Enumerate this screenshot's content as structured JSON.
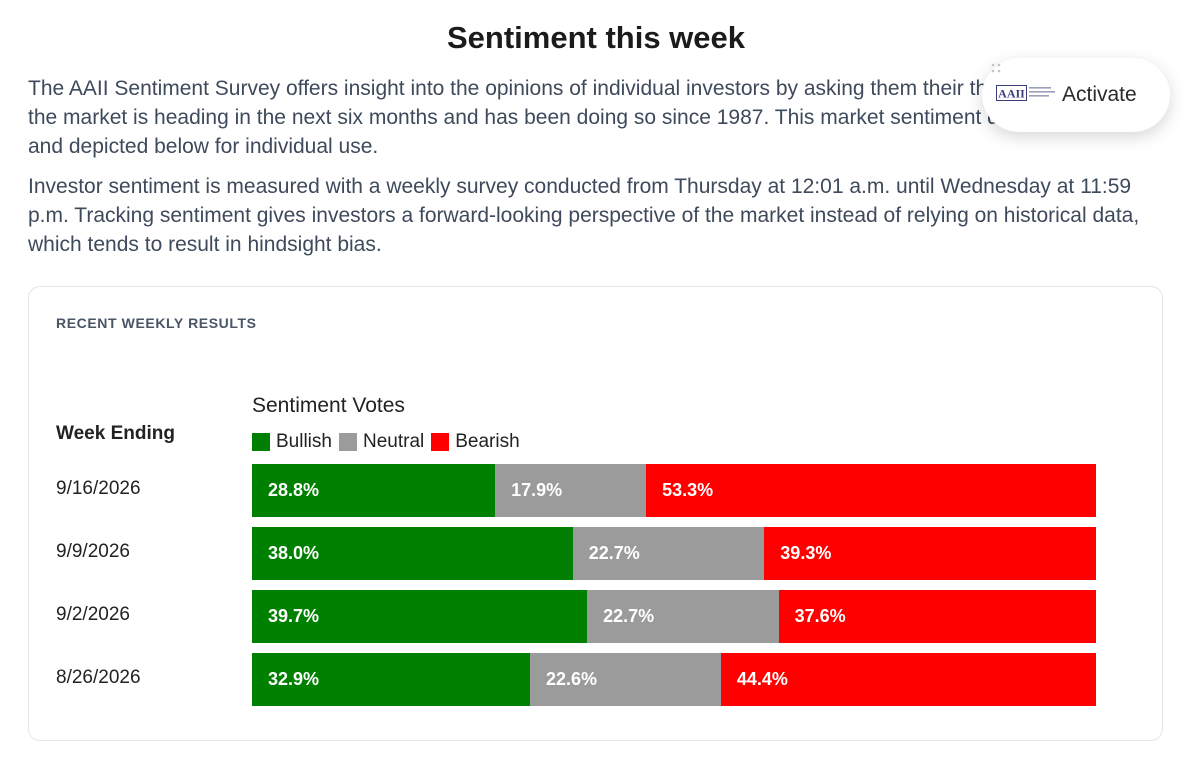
{
  "page": {
    "title": "Sentiment this week",
    "paragraphs": [
      "The AAII Sentiment Survey offers insight into the opinions of individual investors by asking them their thoughts on where the market is heading in the next six months and has been doing so since 1987. This market sentiment data is compiled and depicted below for individual use.",
      "Investor sentiment is measured with a weekly survey conducted from Thursday at 12:01 a.m. until Wednesday at 11:59 p.m. Tracking sentiment gives investors a forward-looking perspective of the market instead of relying on historical data, which tends to result in hindsight bias."
    ]
  },
  "widget": {
    "label": "Activate",
    "logo_text": "AAII",
    "icon": "aaii-logo-icon"
  },
  "card": {
    "heading": "RECENT WEEKLY RESULTS",
    "row_header": "Week Ending"
  },
  "chart_data": {
    "type": "bar",
    "orientation": "horizontal",
    "stacked": true,
    "normalized": true,
    "title": "Sentiment Votes",
    "categories": [
      "9/16/2026",
      "9/9/2026",
      "9/2/2026",
      "8/26/2026"
    ],
    "series": [
      {
        "name": "Bullish",
        "color": "#008000",
        "values": [
          28.8,
          38.0,
          39.7,
          32.9
        ],
        "labels": [
          "28.8%",
          "38.0%",
          "39.7%",
          "32.9%"
        ]
      },
      {
        "name": "Neutral",
        "color": "#9b9b9b",
        "values": [
          17.9,
          22.7,
          22.7,
          22.6
        ],
        "labels": [
          "17.9%",
          "22.7%",
          "22.7%",
          "22.6%"
        ]
      },
      {
        "name": "Bearish",
        "color": "#ff0000",
        "values": [
          53.3,
          39.3,
          37.6,
          44.4
        ],
        "labels": [
          "53.3%",
          "39.3%",
          "37.6%",
          "44.4%"
        ]
      }
    ],
    "xlim": [
      0,
      100
    ],
    "legend": "top-left",
    "grid": false
  }
}
